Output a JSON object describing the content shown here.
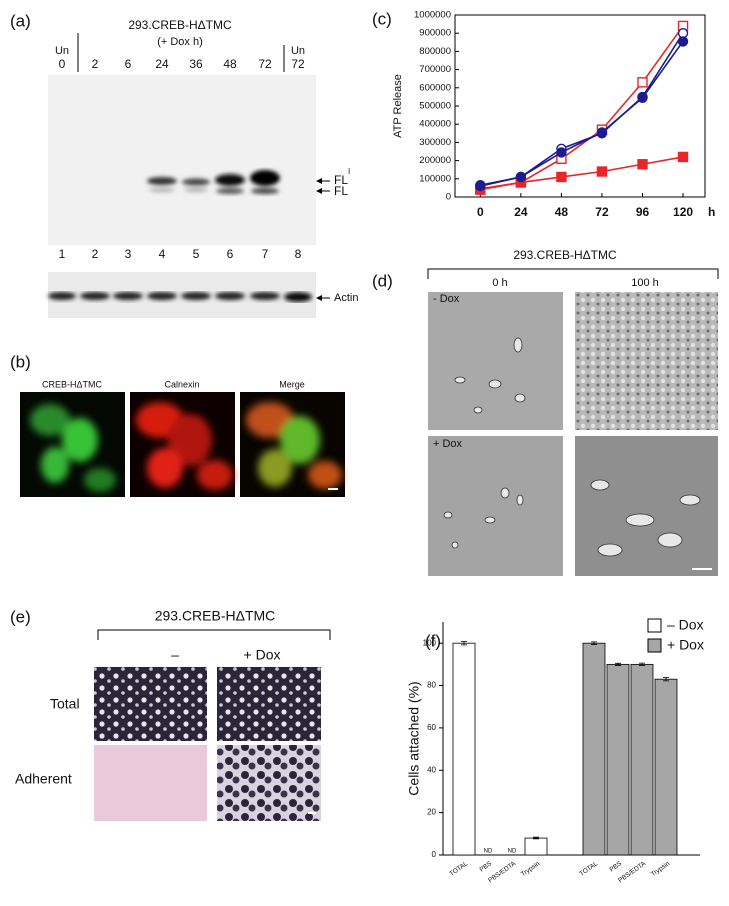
{
  "panel_a": {
    "label": "(a)",
    "title": "293.CREB-HΔTMC",
    "subtitle": "(+ Dox h)",
    "uninduced": [
      "Un",
      "Un"
    ],
    "lanes": [
      "0",
      "2",
      "6",
      "24",
      "36",
      "48",
      "72",
      "72"
    ],
    "lane_numbers": [
      1,
      2,
      3,
      4,
      5,
      6,
      7,
      8
    ],
    "bands": [
      {
        "label": "FL",
        "sup": "I"
      },
      {
        "label": "FL"
      }
    ],
    "loading_control": "Actin"
  },
  "panel_b": {
    "label": "(b)",
    "columns": [
      "CREB-HΔTMC",
      "Calnexin",
      "Merge"
    ]
  },
  "panel_d": {
    "label": "(d)",
    "title": "293.CREB-HΔTMC",
    "columns": [
      "0 h",
      "100 h"
    ],
    "rows": [
      "- Dox",
      "+ Dox"
    ]
  },
  "panel_e": {
    "label": "(e)",
    "title": "293.CREB-HΔTMC",
    "columns": [
      "–",
      "+ Dox"
    ],
    "rows": [
      "Total",
      "Adherent"
    ]
  },
  "chart_data": [
    {
      "panel": "(c)",
      "type": "line",
      "x": [
        0,
        24,
        48,
        72,
        96,
        120
      ],
      "xlim": [
        -15,
        133
      ],
      "xticks": [
        0,
        24,
        48,
        72,
        96,
        120
      ],
      "x_label": "h",
      "y_label": "ATP Release",
      "ylim": [
        0,
        1000000
      ],
      "yticks": [
        0,
        100000,
        200000,
        300000,
        400000,
        500000,
        600000,
        700000,
        800000,
        900000,
        1000000
      ],
      "series": [
        {
          "color": "#e8262a",
          "marker": "square",
          "filled": false,
          "values": [
            40000,
            80000,
            210000,
            370000,
            630000,
            940000
          ]
        },
        {
          "color": "#e8262a",
          "marker": "square",
          "filled": true,
          "values": [
            45000,
            80000,
            110000,
            140000,
            180000,
            220000
          ]
        },
        {
          "color": "#1c1c8e",
          "marker": "circle",
          "filled": false,
          "values": [
            60000,
            110000,
            265000,
            350000,
            550000,
            900000
          ]
        },
        {
          "color": "#1c1c8e",
          "marker": "circle",
          "filled": true,
          "values": [
            65000,
            110000,
            245000,
            355000,
            545000,
            855000
          ]
        }
      ]
    },
    {
      "panel": "(f)",
      "type": "bar",
      "categories": [
        "TOTAL",
        "PBS",
        "PBS/EDTA",
        "Trypsin"
      ],
      "y_label": "Cells attached (%)",
      "ylim": [
        0,
        110
      ],
      "yticks": [
        0,
        20,
        40,
        60,
        80,
        100
      ],
      "legend": "upper right",
      "series": [
        {
          "name": "– Dox",
          "color": "#ffffff",
          "values": [
            100,
            null,
            null,
            8
          ],
          "value_labels": [
            null,
            "ND",
            "ND",
            null
          ],
          "errors": [
            0.8,
            null,
            null,
            0.4
          ]
        },
        {
          "name": "+ Dox",
          "color": "#a6a6a6",
          "values": [
            100,
            90,
            90,
            83
          ],
          "errors": [
            0.6,
            0.5,
            0.6,
            0.8
          ]
        }
      ]
    }
  ]
}
